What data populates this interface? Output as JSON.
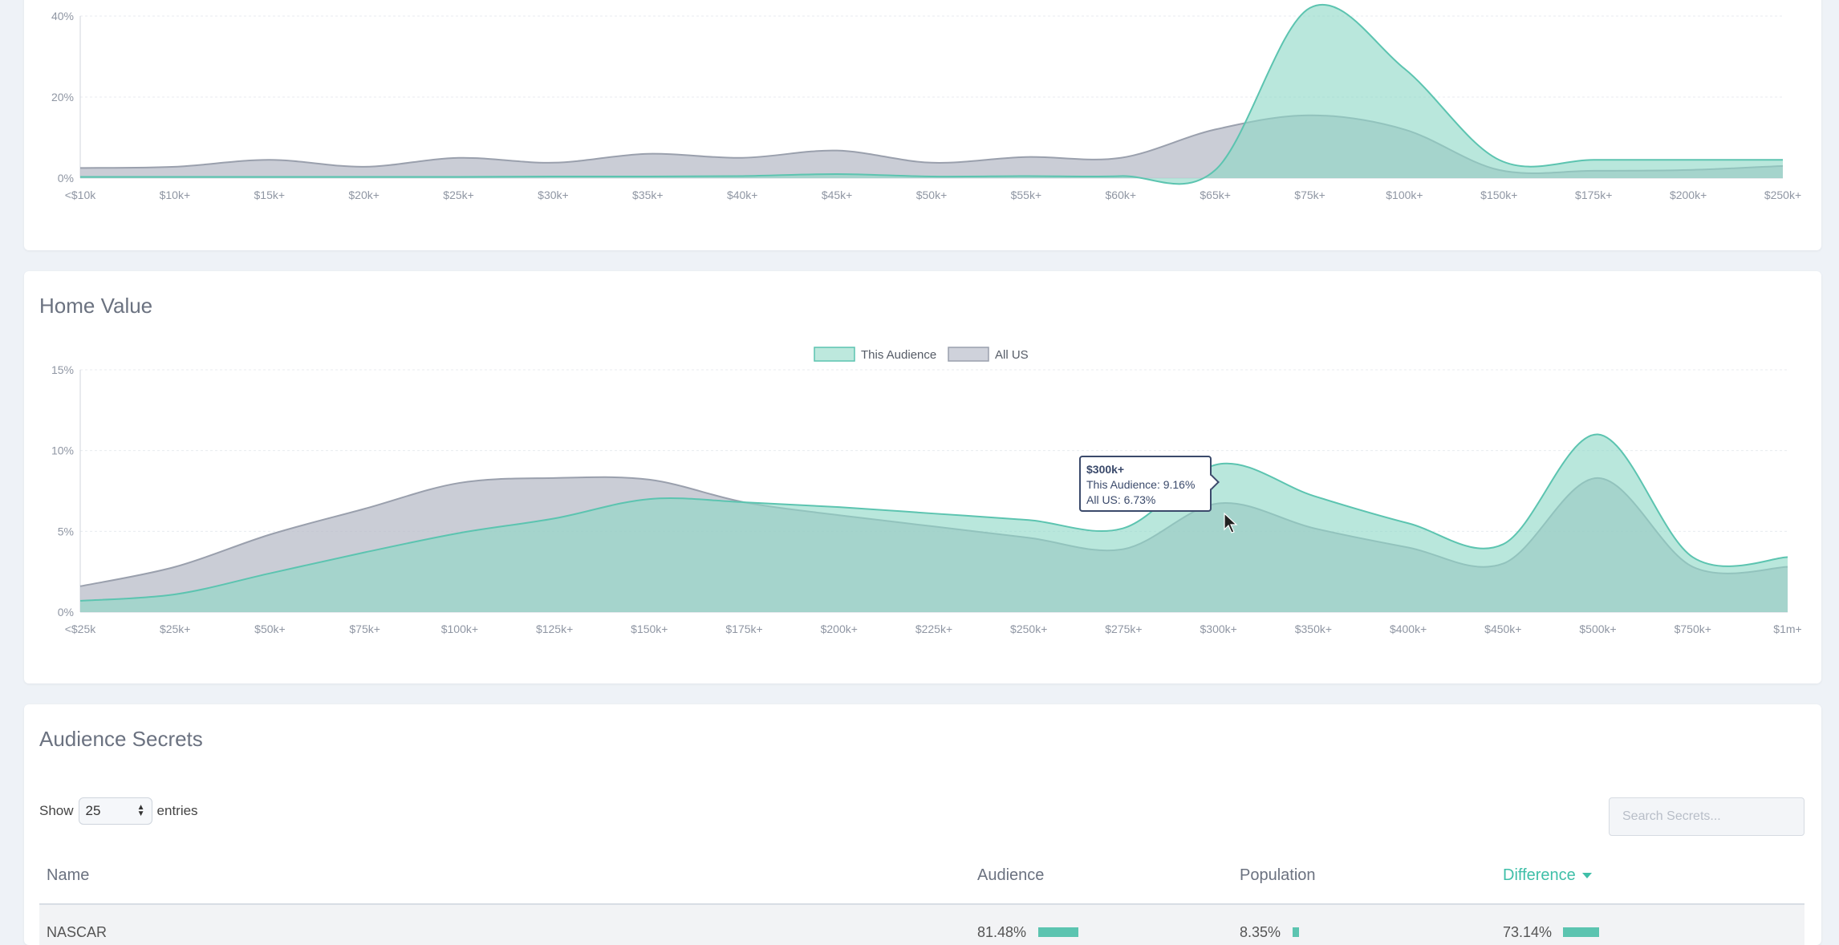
{
  "income_chart": {
    "chart_data": {
      "type": "area",
      "categories": [
        "<$10k",
        "$10k+",
        "$15k+",
        "$20k+",
        "$25k+",
        "$30k+",
        "$35k+",
        "$40k+",
        "$45k+",
        "$50k+",
        "$55k+",
        "$60k+",
        "$65k+",
        "$75k+",
        "$100k+",
        "$150k+",
        "$175k+",
        "$200k+",
        "$250k+"
      ],
      "yticks": [
        "0%",
        "20%",
        "40%"
      ],
      "ylim": [
        0,
        40
      ],
      "series": [
        {
          "name": "This Audience",
          "color": "#8ed8c6",
          "values": [
            0.3,
            0.3,
            0.3,
            0.3,
            0.3,
            0.4,
            0.4,
            0.5,
            1.0,
            0.4,
            0.5,
            0.5,
            2.0,
            42.0,
            27.0,
            4.5,
            4.5,
            4.5,
            4.5
          ]
        },
        {
          "name": "All US",
          "color": "#b8bcc8",
          "values": [
            2.5,
            2.8,
            4.5,
            2.8,
            5.0,
            3.8,
            6.0,
            5.0,
            6.8,
            3.8,
            5.2,
            5.0,
            12.0,
            15.5,
            12.0,
            2.0,
            1.8,
            2.0,
            3.0
          ]
        }
      ]
    }
  },
  "home_value": {
    "title": "Home Value",
    "legend": [
      "This Audience",
      "All US"
    ],
    "tooltip": {
      "title": "$300k+",
      "line1": "This Audience: 9.16%",
      "line2": "All US: 6.73%"
    },
    "chart_data": {
      "type": "area",
      "title": "Home Value",
      "categories": [
        "<$25k",
        "$25k+",
        "$50k+",
        "$75k+",
        "$100k+",
        "$125k+",
        "$150k+",
        "$175k+",
        "$200k+",
        "$225k+",
        "$250k+",
        "$275k+",
        "$300k+",
        "$350k+",
        "$400k+",
        "$450k+",
        "$500k+",
        "$750k+",
        "$1m+"
      ],
      "yticks": [
        "0%",
        "5%",
        "10%",
        "15%"
      ],
      "ylim": [
        0,
        15
      ],
      "legend_position": "top",
      "series": [
        {
          "name": "This Audience",
          "color": "#8ed8c6",
          "values": [
            0.7,
            1.1,
            2.4,
            3.7,
            4.9,
            5.8,
            7.0,
            6.8,
            6.5,
            6.1,
            5.7,
            5.2,
            9.16,
            7.2,
            5.5,
            4.2,
            11.0,
            3.4,
            3.4
          ]
        },
        {
          "name": "All US",
          "color": "#b8bcc8",
          "values": [
            1.6,
            2.8,
            4.8,
            6.4,
            8.0,
            8.3,
            8.2,
            6.8,
            6.0,
            5.3,
            4.6,
            3.9,
            6.73,
            5.2,
            4.0,
            3.0,
            8.3,
            2.8,
            2.8
          ]
        }
      ]
    }
  },
  "secrets": {
    "title": "Audience Secrets",
    "show_label": "Show",
    "entries_value": "25",
    "entries_label": "entries",
    "search_placeholder": "Search Secrets...",
    "columns": {
      "name": "Name",
      "audience": "Audience",
      "population": "Population",
      "difference": "Difference"
    },
    "rows": [
      {
        "name": "NASCAR",
        "audience": "81.48%",
        "population": "8.35%",
        "difference": "73.14%"
      }
    ]
  }
}
